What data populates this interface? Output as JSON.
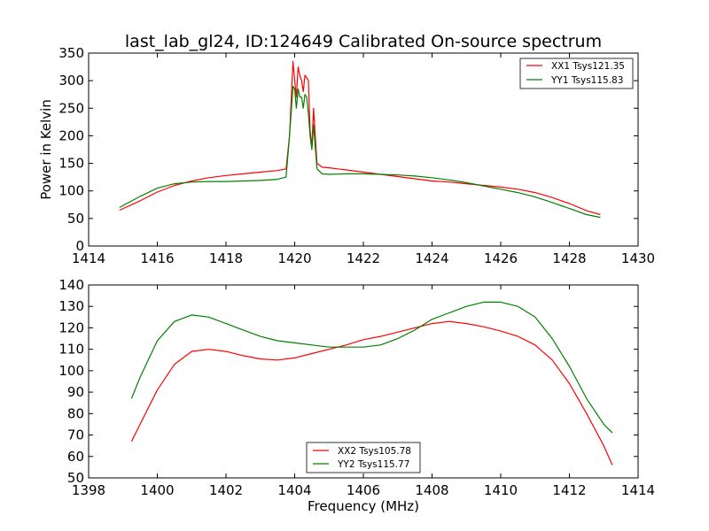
{
  "title": "last_lab_gl24, ID:124649 Calibrated On-source spectrum",
  "colors": {
    "red": "#ff0000",
    "green": "#008000"
  },
  "chart_data": [
    {
      "type": "line",
      "xlabel": "",
      "ylabel": "Power in Kelvin",
      "xlim": [
        1414,
        1430
      ],
      "ylim": [
        0,
        350
      ],
      "xticks": [
        1414,
        1416,
        1418,
        1420,
        1422,
        1424,
        1426,
        1428,
        1430
      ],
      "yticks": [
        0,
        50,
        100,
        150,
        200,
        250,
        300,
        350
      ],
      "legend_position": "top-right",
      "series": [
        {
          "name": "XX1 Tsys121.35",
          "color": "#ff0000",
          "x": [
            1414.9,
            1415.5,
            1416.0,
            1416.5,
            1417.0,
            1417.5,
            1418.0,
            1418.5,
            1419.0,
            1419.5,
            1419.75,
            1419.85,
            1419.95,
            1420.0,
            1420.05,
            1420.1,
            1420.15,
            1420.2,
            1420.25,
            1420.3,
            1420.35,
            1420.4,
            1420.45,
            1420.5,
            1420.55,
            1420.6,
            1420.65,
            1420.8,
            1421.0,
            1421.5,
            1422.0,
            1422.5,
            1423.0,
            1423.5,
            1424.0,
            1424.5,
            1425.0,
            1425.5,
            1426.0,
            1426.5,
            1427.0,
            1427.5,
            1428.0,
            1428.5,
            1428.9
          ],
          "y": [
            65,
            82,
            98,
            110,
            118,
            124,
            128,
            131,
            134,
            137,
            140,
            200,
            335,
            300,
            270,
            325,
            310,
            300,
            280,
            310,
            305,
            300,
            210,
            180,
            250,
            200,
            150,
            143,
            142,
            138,
            134,
            130,
            126,
            122,
            118,
            116,
            113,
            110,
            107,
            103,
            97,
            88,
            77,
            64,
            57
          ]
        },
        {
          "name": "YY1 Tsys115.83",
          "color": "#008000",
          "x": [
            1414.9,
            1415.5,
            1416.0,
            1416.5,
            1417.0,
            1417.5,
            1418.0,
            1418.5,
            1419.0,
            1419.5,
            1419.75,
            1419.85,
            1419.95,
            1420.0,
            1420.05,
            1420.1,
            1420.15,
            1420.2,
            1420.25,
            1420.3,
            1420.35,
            1420.4,
            1420.45,
            1420.5,
            1420.55,
            1420.6,
            1420.65,
            1420.8,
            1421.0,
            1421.5,
            1422.0,
            1422.5,
            1423.0,
            1423.5,
            1424.0,
            1424.5,
            1425.0,
            1425.5,
            1426.0,
            1426.5,
            1427.0,
            1427.5,
            1428.0,
            1428.5,
            1428.9
          ],
          "y": [
            70,
            90,
            105,
            113,
            116,
            117,
            117,
            118,
            119,
            121,
            125,
            200,
            290,
            285,
            250,
            285,
            270,
            270,
            250,
            275,
            270,
            240,
            200,
            175,
            220,
            180,
            140,
            131,
            130,
            131,
            131,
            130,
            129,
            127,
            124,
            120,
            115,
            109,
            103,
            97,
            89,
            79,
            68,
            57,
            52
          ]
        }
      ]
    },
    {
      "type": "line",
      "xlabel": "Frequency (MHz)",
      "ylabel": "",
      "xlim": [
        1398,
        1414
      ],
      "ylim": [
        50,
        140
      ],
      "xticks": [
        1398,
        1400,
        1402,
        1404,
        1406,
        1408,
        1410,
        1412,
        1414
      ],
      "yticks": [
        50,
        60,
        70,
        80,
        90,
        100,
        110,
        120,
        130,
        140
      ],
      "legend_position": "lower-center",
      "series": [
        {
          "name": "XX2 Tsys105.78",
          "color": "#ff0000",
          "x": [
            1399.25,
            1399.5,
            1400.0,
            1400.5,
            1401.0,
            1401.5,
            1402.0,
            1402.5,
            1403.0,
            1403.5,
            1404.0,
            1404.5,
            1405.0,
            1405.5,
            1406.0,
            1406.5,
            1407.0,
            1407.5,
            1408.0,
            1408.5,
            1409.0,
            1409.5,
            1410.0,
            1410.5,
            1411.0,
            1411.5,
            1412.0,
            1412.5,
            1413.0,
            1413.25
          ],
          "y": [
            67,
            75,
            91,
            103,
            109,
            110,
            109,
            107,
            105.5,
            105,
            106,
            108,
            110,
            112,
            114.5,
            116,
            118,
            120,
            122,
            123,
            122,
            120.5,
            118.5,
            116,
            112,
            105,
            94,
            80,
            65,
            56
          ]
        },
        {
          "name": "YY2 Tsys115.77",
          "color": "#008000",
          "x": [
            1399.25,
            1399.5,
            1400.0,
            1400.5,
            1401.0,
            1401.5,
            1402.0,
            1402.5,
            1403.0,
            1403.5,
            1404.0,
            1404.5,
            1405.0,
            1405.5,
            1406.0,
            1406.5,
            1407.0,
            1407.5,
            1408.0,
            1408.5,
            1409.0,
            1409.5,
            1410.0,
            1410.5,
            1411.0,
            1411.5,
            1412.0,
            1412.5,
            1413.0,
            1413.25
          ],
          "y": [
            87,
            97,
            114,
            123,
            126,
            125,
            122,
            119,
            116,
            114,
            113,
            112,
            111,
            111,
            111,
            112,
            115,
            119,
            124,
            127,
            130,
            132,
            132,
            130,
            125,
            115,
            102,
            87,
            75,
            71
          ]
        }
      ]
    }
  ]
}
